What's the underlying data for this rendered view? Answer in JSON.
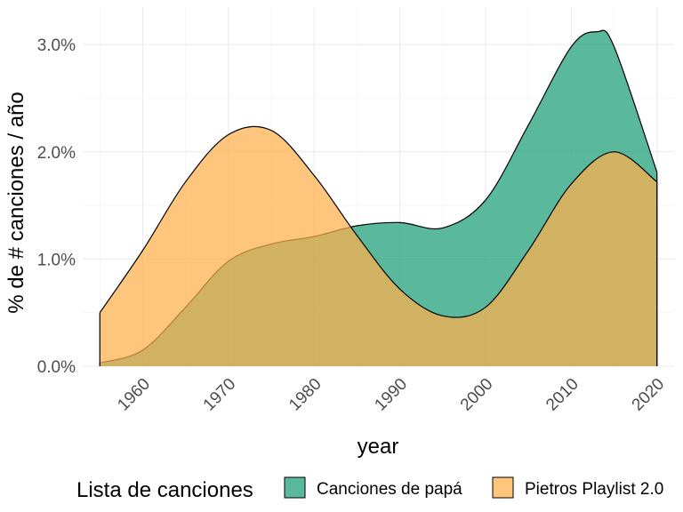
{
  "chart_data": {
    "type": "area",
    "chart_subtype": "density",
    "xlabel": "year",
    "ylabel": "% de # canciones  / año",
    "xlim": [
      1953,
      2022
    ],
    "ylim": [
      0.0,
      0.0335
    ],
    "x_ticks": [
      1960,
      1970,
      1980,
      1990,
      2000,
      2010,
      2020
    ],
    "x_tick_labels": [
      "1960",
      "1970",
      "1980",
      "1990",
      "2000",
      "2010",
      "2020"
    ],
    "y_ticks": [
      0.0,
      0.01,
      0.02,
      0.03
    ],
    "y_tick_labels": [
      "0.0%",
      "1.0%",
      "2.0%",
      "3.0%"
    ],
    "grid": true,
    "legend": {
      "title": "Lista de canciones",
      "position": "bottom",
      "entries": [
        "Canciones de papá",
        "Pietros Playlist 2.0"
      ]
    },
    "series": [
      {
        "name": "Canciones de papá",
        "color": "#1b9e77",
        "x": [
          1955,
          1960,
          1965,
          1970,
          1975,
          1980,
          1985,
          1990,
          1995,
          2000,
          2005,
          2010,
          2013,
          2015,
          2020
        ],
        "y": [
          0.0003,
          0.0015,
          0.0055,
          0.0098,
          0.0114,
          0.0121,
          0.0131,
          0.0134,
          0.0129,
          0.0155,
          0.0225,
          0.0298,
          0.0312,
          0.0298,
          0.0181
        ]
      },
      {
        "name": "Pietros Playlist 2.0",
        "color": "#fdae4b",
        "x": [
          1955,
          1960,
          1965,
          1970,
          1975,
          1980,
          1985,
          1990,
          1995,
          2000,
          2005,
          2010,
          2015,
          2020
        ],
        "y": [
          0.005,
          0.0108,
          0.0172,
          0.0216,
          0.022,
          0.0178,
          0.0122,
          0.0072,
          0.0047,
          0.0055,
          0.0108,
          0.017,
          0.02,
          0.0172
        ]
      }
    ]
  }
}
